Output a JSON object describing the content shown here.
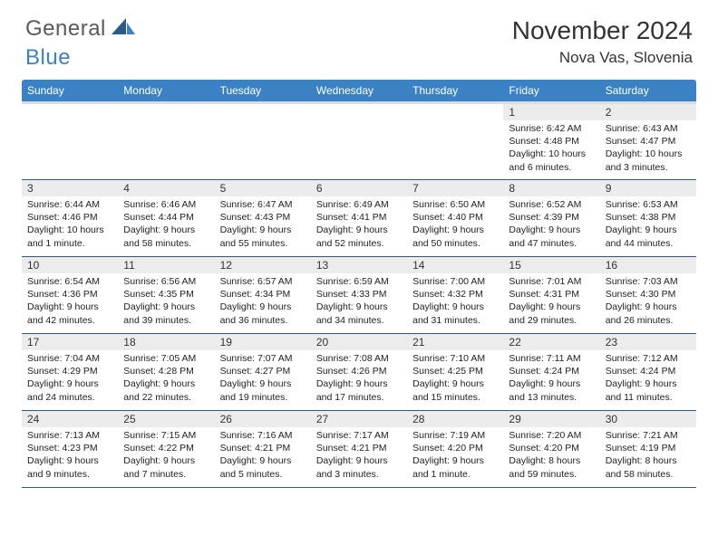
{
  "logo": {
    "general": "General",
    "blue": "Blue"
  },
  "title": "November 2024",
  "location": "Nova Vas, Slovenia",
  "colors": {
    "header_bg": "#3b82c4",
    "header_text": "#ffffff",
    "daynum_bg": "#ececec",
    "row_border": "#2c5a8a",
    "logo_gray": "#5a5a5a",
    "logo_blue": "#3b82c4",
    "sub_header_band": "#d9dde0"
  },
  "day_headers": [
    "Sunday",
    "Monday",
    "Tuesday",
    "Wednesday",
    "Thursday",
    "Friday",
    "Saturday"
  ],
  "weeks": [
    [
      {
        "num": "",
        "sunrise": "",
        "sunset": "",
        "daylight": ""
      },
      {
        "num": "",
        "sunrise": "",
        "sunset": "",
        "daylight": ""
      },
      {
        "num": "",
        "sunrise": "",
        "sunset": "",
        "daylight": ""
      },
      {
        "num": "",
        "sunrise": "",
        "sunset": "",
        "daylight": ""
      },
      {
        "num": "",
        "sunrise": "",
        "sunset": "",
        "daylight": ""
      },
      {
        "num": "1",
        "sunrise": "Sunrise: 6:42 AM",
        "sunset": "Sunset: 4:48 PM",
        "daylight": "Daylight: 10 hours and 6 minutes."
      },
      {
        "num": "2",
        "sunrise": "Sunrise: 6:43 AM",
        "sunset": "Sunset: 4:47 PM",
        "daylight": "Daylight: 10 hours and 3 minutes."
      }
    ],
    [
      {
        "num": "3",
        "sunrise": "Sunrise: 6:44 AM",
        "sunset": "Sunset: 4:46 PM",
        "daylight": "Daylight: 10 hours and 1 minute."
      },
      {
        "num": "4",
        "sunrise": "Sunrise: 6:46 AM",
        "sunset": "Sunset: 4:44 PM",
        "daylight": "Daylight: 9 hours and 58 minutes."
      },
      {
        "num": "5",
        "sunrise": "Sunrise: 6:47 AM",
        "sunset": "Sunset: 4:43 PM",
        "daylight": "Daylight: 9 hours and 55 minutes."
      },
      {
        "num": "6",
        "sunrise": "Sunrise: 6:49 AM",
        "sunset": "Sunset: 4:41 PM",
        "daylight": "Daylight: 9 hours and 52 minutes."
      },
      {
        "num": "7",
        "sunrise": "Sunrise: 6:50 AM",
        "sunset": "Sunset: 4:40 PM",
        "daylight": "Daylight: 9 hours and 50 minutes."
      },
      {
        "num": "8",
        "sunrise": "Sunrise: 6:52 AM",
        "sunset": "Sunset: 4:39 PM",
        "daylight": "Daylight: 9 hours and 47 minutes."
      },
      {
        "num": "9",
        "sunrise": "Sunrise: 6:53 AM",
        "sunset": "Sunset: 4:38 PM",
        "daylight": "Daylight: 9 hours and 44 minutes."
      }
    ],
    [
      {
        "num": "10",
        "sunrise": "Sunrise: 6:54 AM",
        "sunset": "Sunset: 4:36 PM",
        "daylight": "Daylight: 9 hours and 42 minutes."
      },
      {
        "num": "11",
        "sunrise": "Sunrise: 6:56 AM",
        "sunset": "Sunset: 4:35 PM",
        "daylight": "Daylight: 9 hours and 39 minutes."
      },
      {
        "num": "12",
        "sunrise": "Sunrise: 6:57 AM",
        "sunset": "Sunset: 4:34 PM",
        "daylight": "Daylight: 9 hours and 36 minutes."
      },
      {
        "num": "13",
        "sunrise": "Sunrise: 6:59 AM",
        "sunset": "Sunset: 4:33 PM",
        "daylight": "Daylight: 9 hours and 34 minutes."
      },
      {
        "num": "14",
        "sunrise": "Sunrise: 7:00 AM",
        "sunset": "Sunset: 4:32 PM",
        "daylight": "Daylight: 9 hours and 31 minutes."
      },
      {
        "num": "15",
        "sunrise": "Sunrise: 7:01 AM",
        "sunset": "Sunset: 4:31 PM",
        "daylight": "Daylight: 9 hours and 29 minutes."
      },
      {
        "num": "16",
        "sunrise": "Sunrise: 7:03 AM",
        "sunset": "Sunset: 4:30 PM",
        "daylight": "Daylight: 9 hours and 26 minutes."
      }
    ],
    [
      {
        "num": "17",
        "sunrise": "Sunrise: 7:04 AM",
        "sunset": "Sunset: 4:29 PM",
        "daylight": "Daylight: 9 hours and 24 minutes."
      },
      {
        "num": "18",
        "sunrise": "Sunrise: 7:05 AM",
        "sunset": "Sunset: 4:28 PM",
        "daylight": "Daylight: 9 hours and 22 minutes."
      },
      {
        "num": "19",
        "sunrise": "Sunrise: 7:07 AM",
        "sunset": "Sunset: 4:27 PM",
        "daylight": "Daylight: 9 hours and 19 minutes."
      },
      {
        "num": "20",
        "sunrise": "Sunrise: 7:08 AM",
        "sunset": "Sunset: 4:26 PM",
        "daylight": "Daylight: 9 hours and 17 minutes."
      },
      {
        "num": "21",
        "sunrise": "Sunrise: 7:10 AM",
        "sunset": "Sunset: 4:25 PM",
        "daylight": "Daylight: 9 hours and 15 minutes."
      },
      {
        "num": "22",
        "sunrise": "Sunrise: 7:11 AM",
        "sunset": "Sunset: 4:24 PM",
        "daylight": "Daylight: 9 hours and 13 minutes."
      },
      {
        "num": "23",
        "sunrise": "Sunrise: 7:12 AM",
        "sunset": "Sunset: 4:24 PM",
        "daylight": "Daylight: 9 hours and 11 minutes."
      }
    ],
    [
      {
        "num": "24",
        "sunrise": "Sunrise: 7:13 AM",
        "sunset": "Sunset: 4:23 PM",
        "daylight": "Daylight: 9 hours and 9 minutes."
      },
      {
        "num": "25",
        "sunrise": "Sunrise: 7:15 AM",
        "sunset": "Sunset: 4:22 PM",
        "daylight": "Daylight: 9 hours and 7 minutes."
      },
      {
        "num": "26",
        "sunrise": "Sunrise: 7:16 AM",
        "sunset": "Sunset: 4:21 PM",
        "daylight": "Daylight: 9 hours and 5 minutes."
      },
      {
        "num": "27",
        "sunrise": "Sunrise: 7:17 AM",
        "sunset": "Sunset: 4:21 PM",
        "daylight": "Daylight: 9 hours and 3 minutes."
      },
      {
        "num": "28",
        "sunrise": "Sunrise: 7:19 AM",
        "sunset": "Sunset: 4:20 PM",
        "daylight": "Daylight: 9 hours and 1 minute."
      },
      {
        "num": "29",
        "sunrise": "Sunrise: 7:20 AM",
        "sunset": "Sunset: 4:20 PM",
        "daylight": "Daylight: 8 hours and 59 minutes."
      },
      {
        "num": "30",
        "sunrise": "Sunrise: 7:21 AM",
        "sunset": "Sunset: 4:19 PM",
        "daylight": "Daylight: 8 hours and 58 minutes."
      }
    ]
  ]
}
